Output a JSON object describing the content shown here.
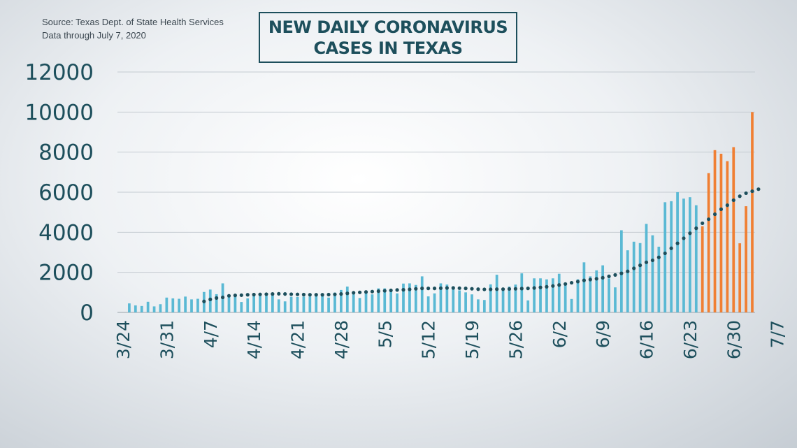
{
  "source": {
    "line1": "Source: Texas Dept. of State Health Services",
    "line2": "Data through  July 7, 2020"
  },
  "chart_data": {
    "type": "bar",
    "title": "NEW DAILY CORONAVIRUS CASES IN TEXAS",
    "title_lines": [
      "NEW DAILY CORONAVIRUS",
      "CASES IN TEXAS"
    ],
    "xlabel": "",
    "ylabel": "",
    "ylim": [
      0,
      12000
    ],
    "yticks": [
      0,
      2000,
      4000,
      6000,
      8000,
      10000,
      12000
    ],
    "grid": true,
    "legend": "none",
    "start_date": "3/24",
    "end_date": "7/7",
    "xtick_labels": [
      "3/24",
      "3/31",
      "4/7",
      "4/14",
      "4/21",
      "4/28",
      "5/5",
      "5/12",
      "5/19",
      "5/26",
      "6/2",
      "6/9",
      "6/16",
      "6/23",
      "6/30",
      "7/7"
    ],
    "colors": {
      "before_6_25": "#5ab9d4",
      "from_6_25": "#f07f33",
      "average": "#1d4f5c"
    },
    "series": [
      {
        "values": [
          0,
          450,
          350,
          320,
          530,
          300,
          410,
          740,
          700,
          680,
          790,
          650,
          680,
          1020,
          1140,
          910,
          1450,
          880,
          840,
          520,
          700,
          820,
          830,
          830,
          850,
          650,
          550,
          780,
          770,
          790,
          790,
          920,
          950,
          740,
          990,
          1120,
          1290,
          900,
          720,
          1000,
          900,
          1200,
          1200,
          1050,
          950,
          1440,
          1450,
          1370,
          1800,
          800,
          950,
          1450,
          1390,
          1300,
          1100,
          1000,
          900,
          650,
          620,
          1400,
          1880,
          1150,
          1290,
          1390,
          1950,
          600,
          1700,
          1700,
          1650,
          1700,
          1930,
          1350,
          670,
          1650,
          2500,
          1800,
          2100,
          2350,
          1700,
          1250,
          4100,
          3100,
          3530,
          3460,
          4420,
          3850,
          3280,
          5500,
          5550,
          6000,
          5680,
          5750,
          5350,
          4300,
          6950,
          8100,
          7920,
          7550,
          8250,
          3450,
          5300,
          10000
        ]
      },
      {
        "values": [
          null,
          null,
          null,
          null,
          null,
          null,
          null,
          null,
          null,
          null,
          null,
          null,
          null,
          550,
          650,
          720,
          750,
          830,
          850,
          860,
          880,
          890,
          900,
          910,
          920,
          930,
          920,
          910,
          900,
          890,
          880,
          880,
          880,
          890,
          900,
          920,
          950,
          980,
          1000,
          1020,
          1040,
          1060,
          1080,
          1100,
          1120,
          1130,
          1150,
          1180,
          1200,
          1200,
          1200,
          1210,
          1220,
          1220,
          1210,
          1200,
          1180,
          1160,
          1150,
          1150,
          1160,
          1160,
          1170,
          1180,
          1190,
          1200,
          1220,
          1250,
          1280,
          1320,
          1370,
          1420,
          1480,
          1540,
          1600,
          1640,
          1680,
          1730,
          1800,
          1870,
          1950,
          2050,
          2200,
          2350,
          2500,
          2600,
          2750,
          2950,
          3200,
          3450,
          3700,
          3950,
          4200,
          4450,
          4650,
          4900,
          5150,
          5350,
          5600,
          5800,
          5950,
          6050,
          6150
        ]
      }
    ]
  }
}
